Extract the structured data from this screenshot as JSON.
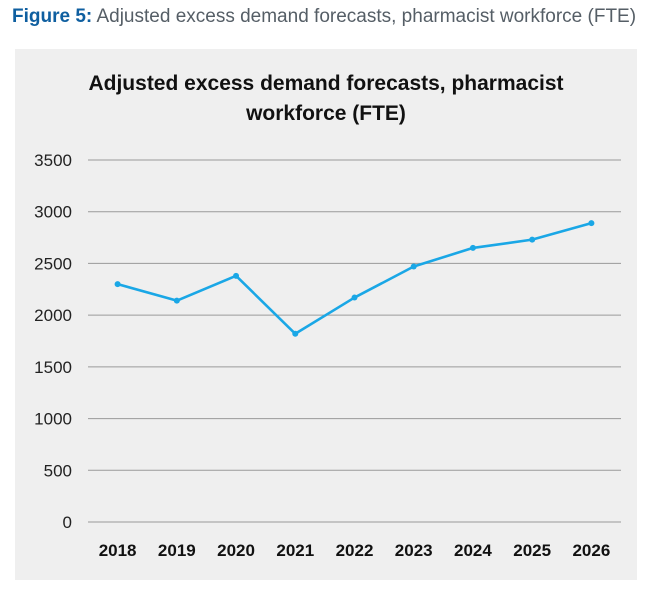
{
  "figure_label": "Figure 5:",
  "figure_caption": "Adjusted excess demand forecasts, pharmacist workforce (FTE)",
  "colors": {
    "series": "#1aa7e6",
    "grid": "#9a9a9a",
    "panel": "#efefef"
  },
  "chart_data": {
    "type": "line",
    "title_lines": [
      "Adjusted excess demand forecasts, pharmacist",
      "workforce (FTE)"
    ],
    "xlabel": "",
    "ylabel": "",
    "categories": [
      "2018",
      "2019",
      "2020",
      "2021",
      "2022",
      "2023",
      "2024",
      "2025",
      "2026"
    ],
    "series": [
      {
        "values": [
          2300,
          2140,
          2380,
          1820,
          2170,
          2470,
          2650,
          2730,
          2890
        ]
      }
    ],
    "ylim": [
      0,
      3500
    ],
    "yticks": [
      "0",
      "500",
      "1000",
      "1500",
      "2000",
      "2500",
      "3000",
      "3500"
    ],
    "grid": true
  }
}
